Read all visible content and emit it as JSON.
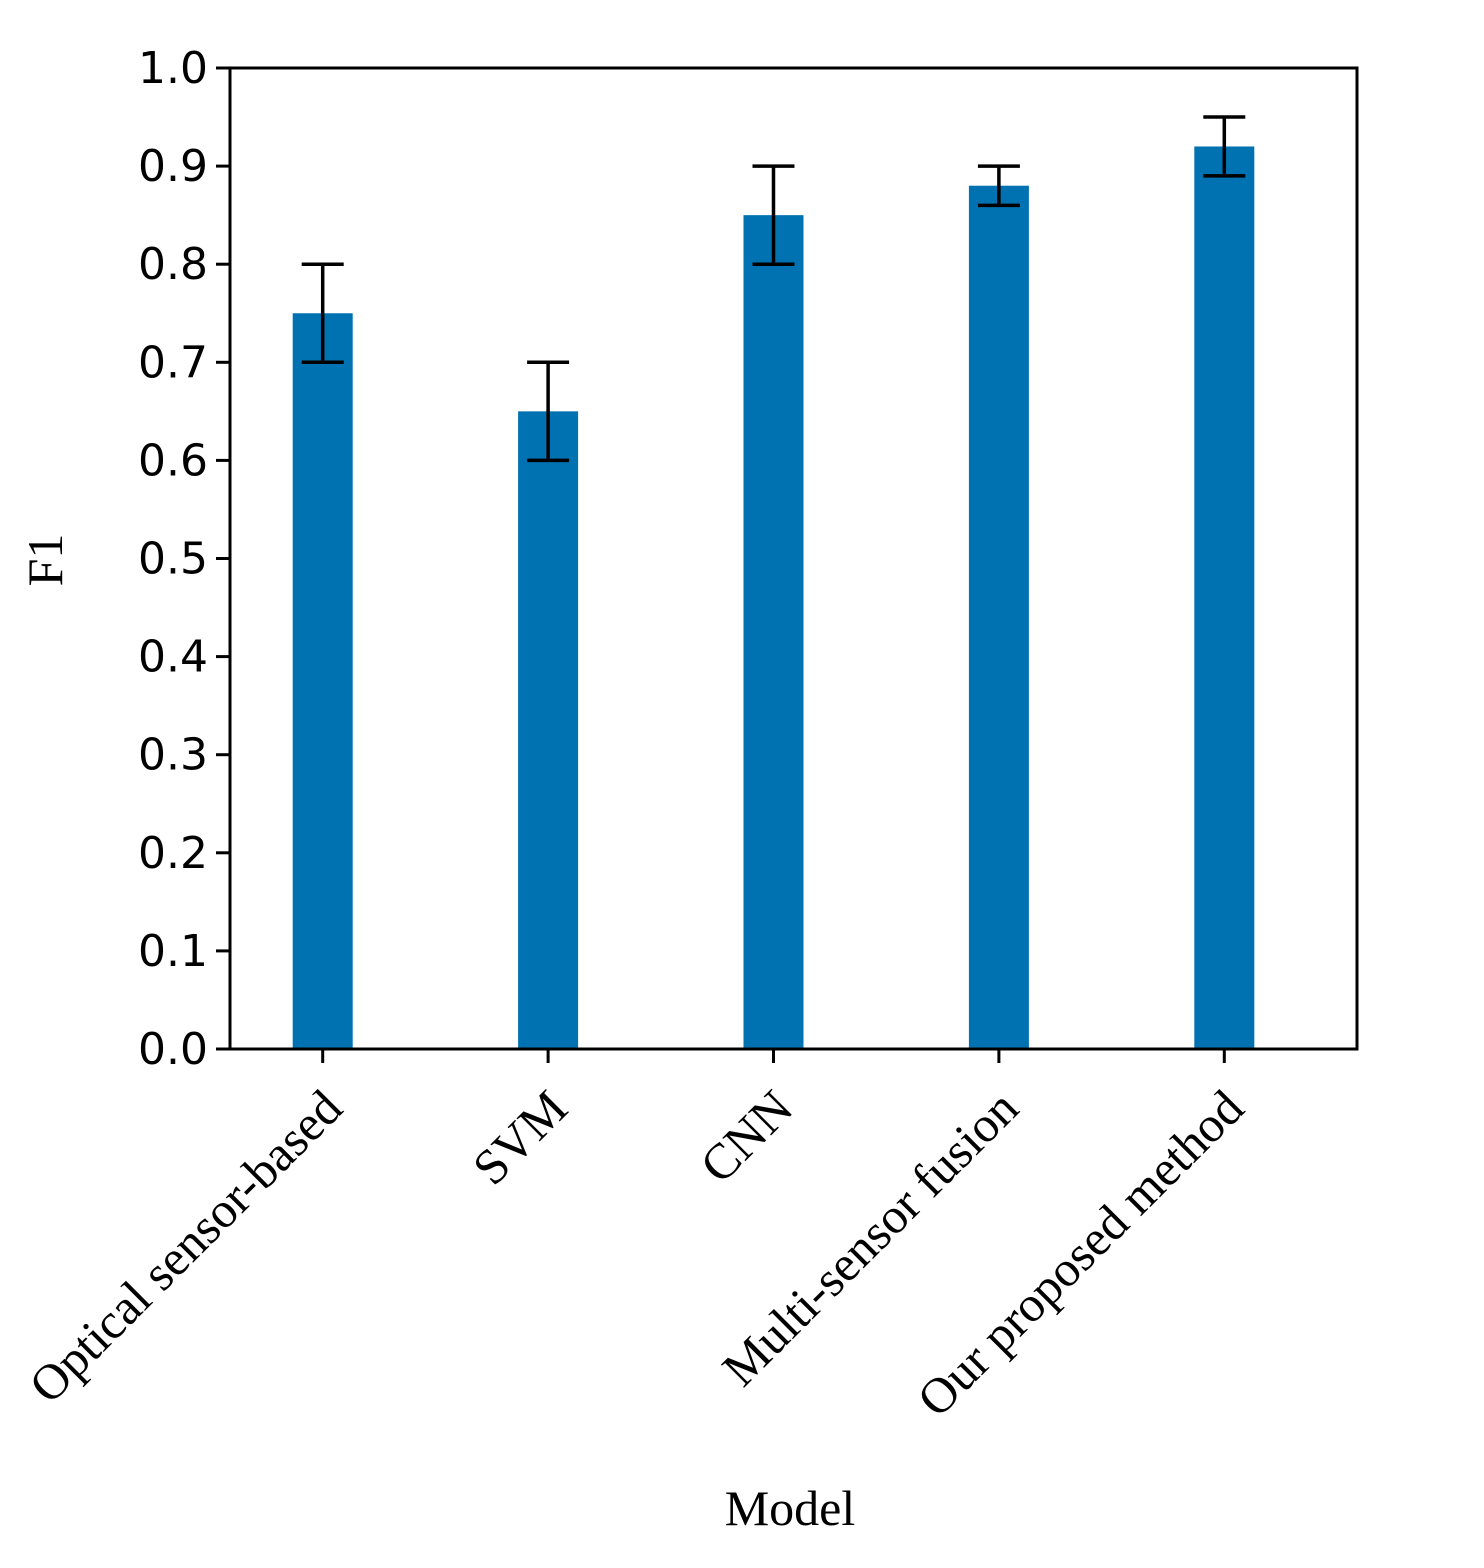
{
  "chart_data": {
    "type": "bar",
    "title": "",
    "xlabel": "Model",
    "ylabel": "F1",
    "ylim": [
      0.0,
      1.0
    ],
    "yticks": [
      "0.0",
      "0.1",
      "0.2",
      "0.3",
      "0.4",
      "0.5",
      "0.6",
      "0.7",
      "0.8",
      "0.9",
      "1.0"
    ],
    "categories": [
      "Optical sensor-based",
      "SVM",
      "CNN",
      "Multi-sensor fusion",
      "Our proposed method"
    ],
    "values": [
      0.75,
      0.65,
      0.85,
      0.88,
      0.92
    ],
    "error_lower": [
      0.7,
      0.6,
      0.8,
      0.86,
      0.89
    ],
    "error_upper": [
      0.8,
      0.7,
      0.9,
      0.9,
      0.95
    ],
    "bar_color": "#0072b2",
    "error_color": "#000000",
    "grid": false,
    "legend": "none"
  }
}
